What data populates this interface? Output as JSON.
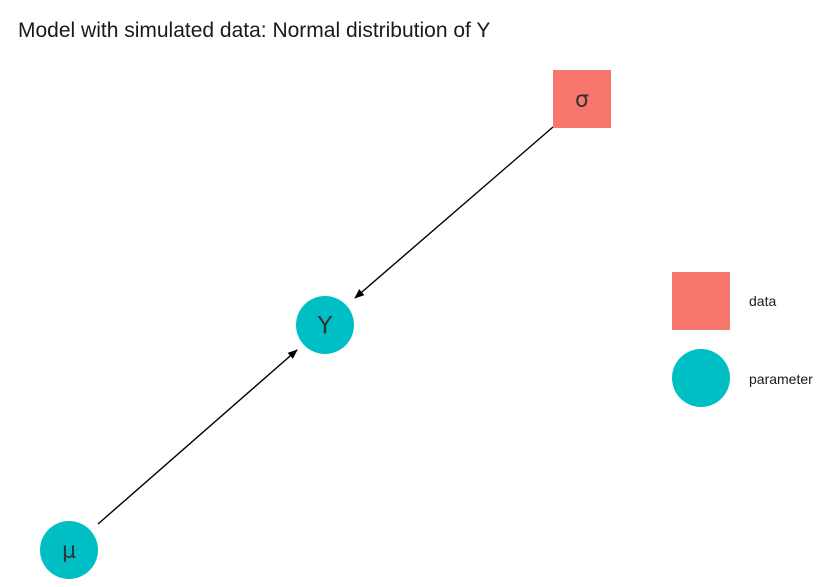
{
  "title": "Model with simulated data: Normal distribution of Y",
  "colors": {
    "data": "#F8766D",
    "parameter": "#00BFC4",
    "edge": "#000000"
  },
  "nodes": [
    {
      "id": "sigma",
      "label": "σ",
      "type": "data"
    },
    {
      "id": "y",
      "label": "Y",
      "type": "parameter"
    },
    {
      "id": "mu",
      "label": "μ",
      "type": "parameter"
    }
  ],
  "edges": [
    {
      "from": "sigma",
      "to": "y"
    },
    {
      "from": "mu",
      "to": "y"
    }
  ],
  "legend": [
    {
      "type": "data",
      "label": "data",
      "shape": "square"
    },
    {
      "type": "parameter",
      "label": "parameter",
      "shape": "circle"
    }
  ]
}
